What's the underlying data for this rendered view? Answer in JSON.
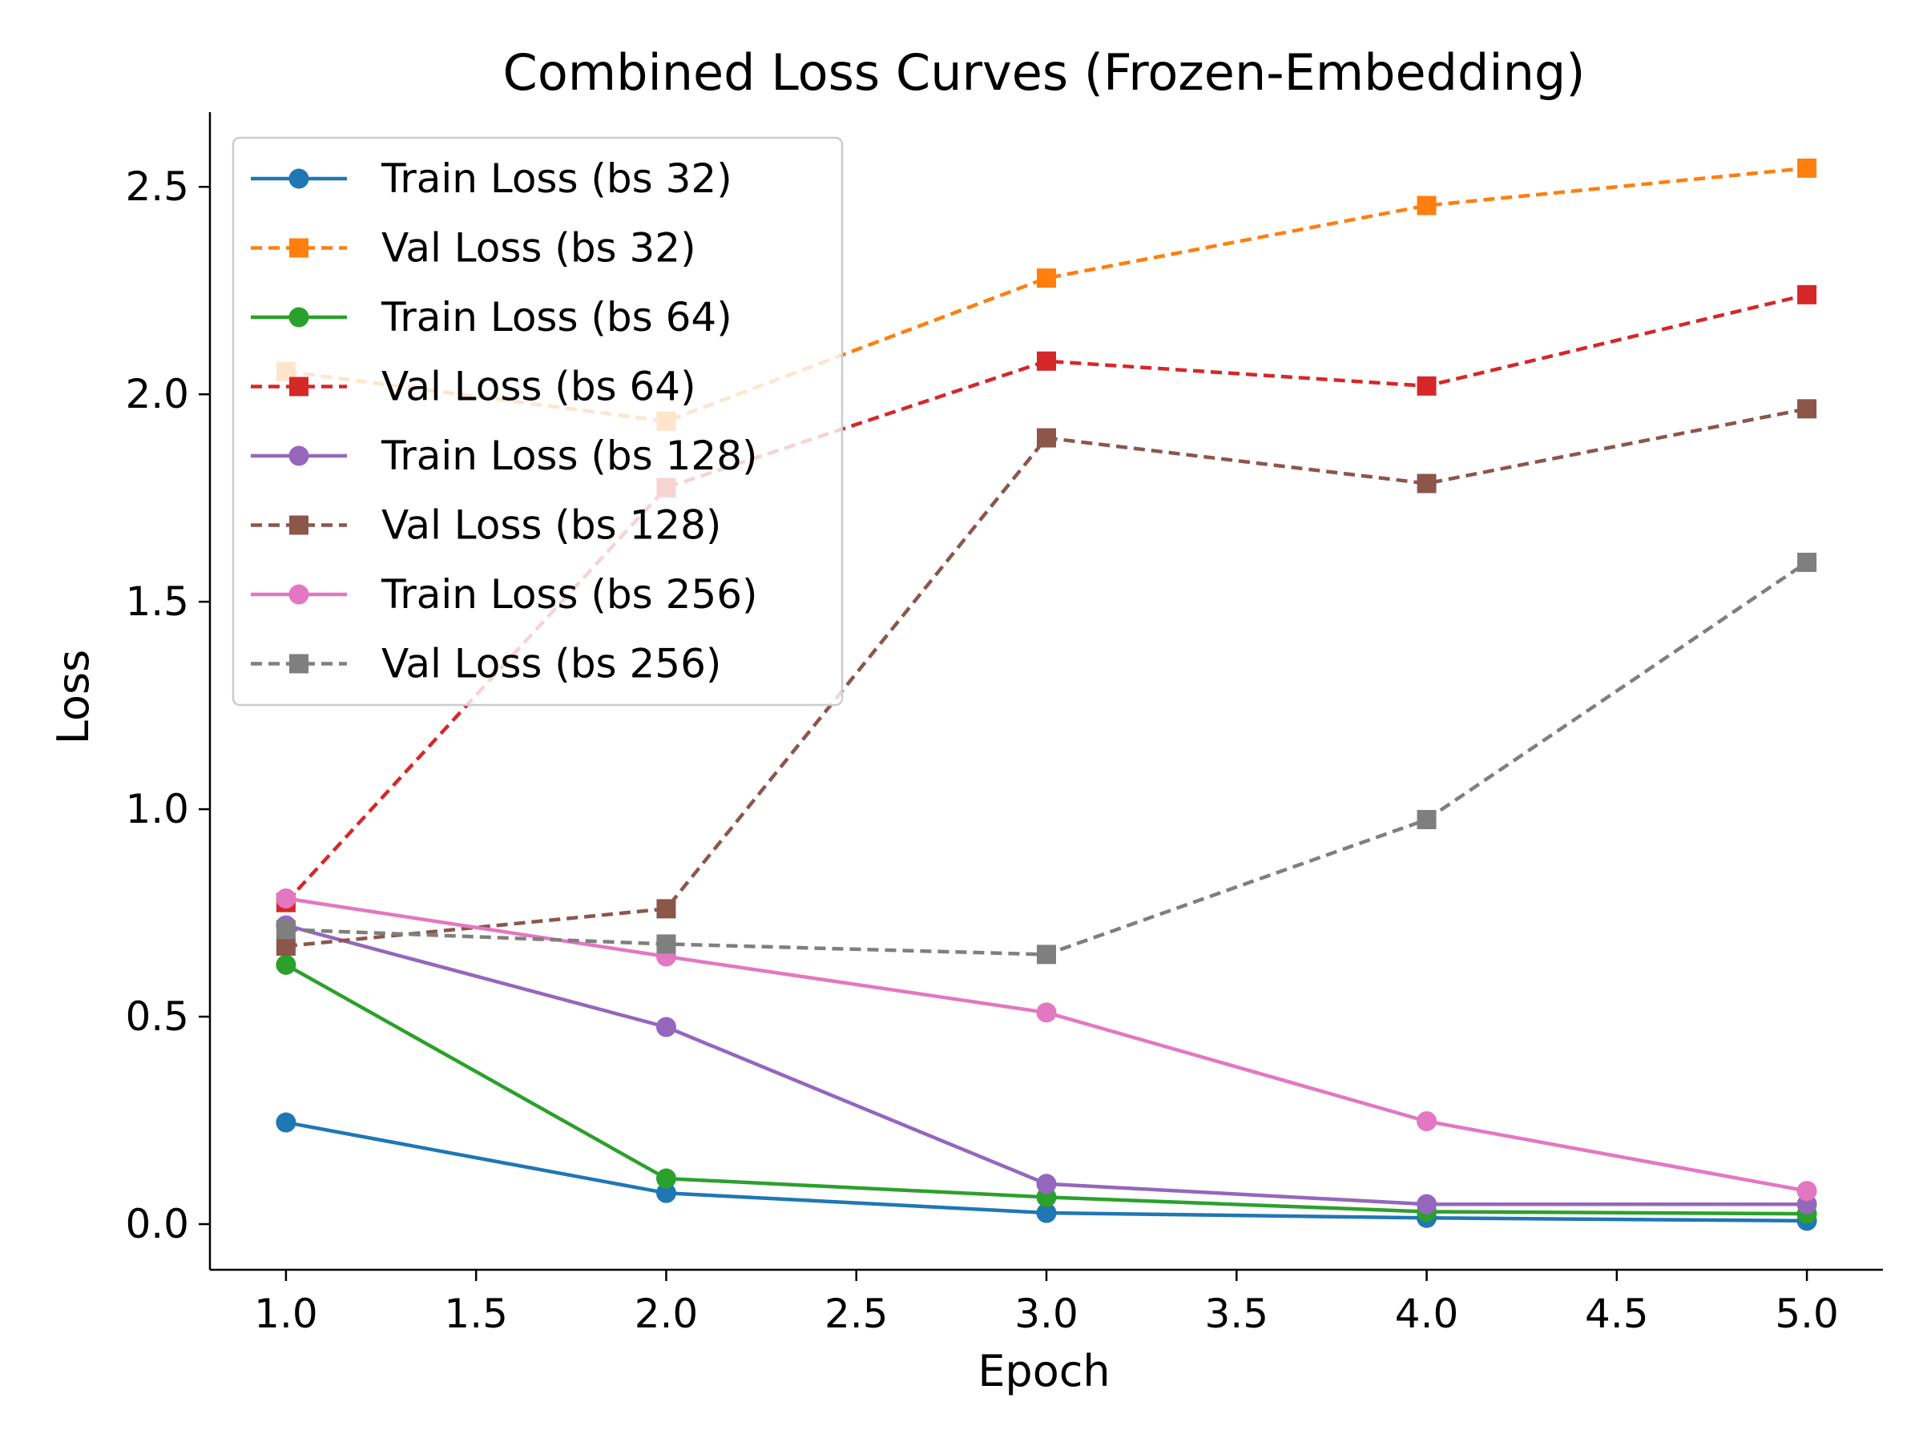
{
  "chart_data": {
    "type": "line",
    "title": "Combined Loss Curves (Frozen-Embedding)",
    "xlabel": "Epoch",
    "ylabel": "Loss",
    "x": [
      1.0,
      2.0,
      3.0,
      4.0,
      5.0
    ],
    "xlim": [
      0.8,
      5.2
    ],
    "ylim": [
      -0.11,
      2.68
    ],
    "xticks": [
      "1.0",
      "1.5",
      "2.0",
      "2.5",
      "3.0",
      "3.5",
      "4.0",
      "4.5",
      "5.0"
    ],
    "yticks": [
      "0.0",
      "0.5",
      "1.0",
      "1.5",
      "2.0",
      "2.5"
    ],
    "grid": false,
    "legend_position": "upper-left",
    "series": [
      {
        "name": "Train Loss (bs 32)",
        "color": "#1f77b4",
        "linestyle": "solid",
        "marker": "circle",
        "values": [
          0.245,
          0.075,
          0.027,
          0.015,
          0.008
        ]
      },
      {
        "name": "Val Loss (bs 32)",
        "color": "#ff7f0e",
        "linestyle": "dashed",
        "marker": "square",
        "values": [
          2.055,
          1.935,
          2.28,
          2.455,
          2.545
        ]
      },
      {
        "name": "Train Loss (bs 64)",
        "color": "#2ca02c",
        "linestyle": "solid",
        "marker": "circle",
        "values": [
          0.625,
          0.11,
          0.065,
          0.03,
          0.025
        ]
      },
      {
        "name": "Val Loss (bs 64)",
        "color": "#d62728",
        "linestyle": "dashed",
        "marker": "square",
        "values": [
          0.775,
          1.775,
          2.08,
          2.02,
          2.24
        ]
      },
      {
        "name": "Train Loss (bs 128)",
        "color": "#9467bd",
        "linestyle": "solid",
        "marker": "circle",
        "values": [
          0.72,
          0.475,
          0.097,
          0.048,
          0.048
        ]
      },
      {
        "name": "Val Loss (bs 128)",
        "color": "#8c564b",
        "linestyle": "dashed",
        "marker": "square",
        "values": [
          0.67,
          0.76,
          1.895,
          1.785,
          1.965
        ]
      },
      {
        "name": "Train Loss (bs 256)",
        "color": "#e377c2",
        "linestyle": "solid",
        "marker": "circle",
        "values": [
          0.785,
          0.645,
          0.51,
          0.248,
          0.08
        ]
      },
      {
        "name": "Val Loss (bs 256)",
        "color": "#7f7f7f",
        "linestyle": "dashed",
        "marker": "square",
        "values": [
          0.71,
          0.675,
          0.65,
          0.975,
          1.595
        ]
      }
    ]
  }
}
